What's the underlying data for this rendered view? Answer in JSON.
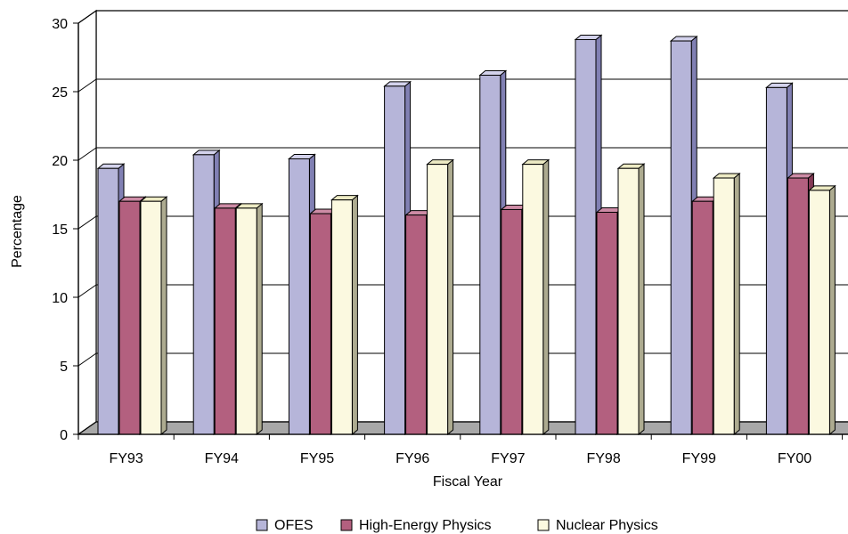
{
  "chart_data": {
    "type": "bar",
    "title": "",
    "xlabel": "Fiscal Year",
    "ylabel": "Percentage",
    "categories": [
      "FY93",
      "FY94",
      "FY95",
      "FY96",
      "FY97",
      "FY98",
      "FY99",
      "FY00"
    ],
    "y_ticks": [
      "0",
      "5",
      "10",
      "15",
      "20",
      "25",
      "30"
    ],
    "ylim": [
      0,
      30
    ],
    "grid": true,
    "legend_position": "bottom",
    "series": [
      {
        "name": "OFES",
        "color": "#b6b5d9",
        "side_color": "#8180b3",
        "top_color": "#d3d2ec",
        "values": [
          19.4,
          20.4,
          20.1,
          25.4,
          26.2,
          28.8,
          28.7,
          25.3
        ]
      },
      {
        "name": "High-Energy Physics",
        "color": "#b3607f",
        "side_color": "#843a55",
        "top_color": "#cd8ba5",
        "values": [
          17.0,
          16.5,
          16.1,
          16.0,
          16.4,
          16.2,
          17.0,
          18.7
        ]
      },
      {
        "name": "Nuclear Physics",
        "color": "#fbf9e0",
        "side_color": "#adab90",
        "top_color": "#eceac3",
        "values": [
          17.0,
          16.5,
          17.1,
          19.7,
          19.7,
          19.4,
          18.7,
          17.8
        ]
      }
    ]
  }
}
